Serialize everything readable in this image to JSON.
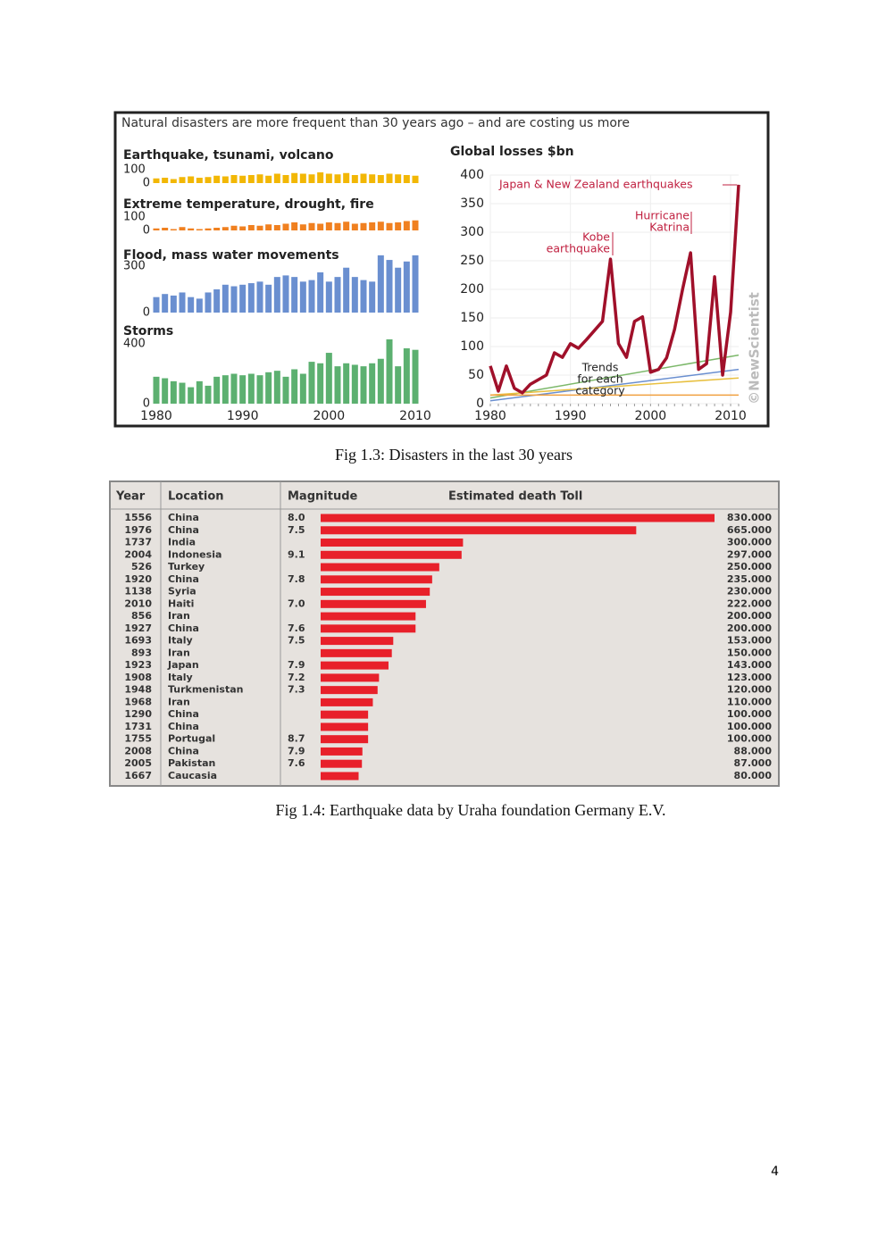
{
  "figures": [
    {
      "header": "Natural disasters are more frequent than 30 years ago – and are costing us more",
      "caption": "Fig 1.3: Disasters in the last 30 years",
      "charts": [
        {
          "type": "bar",
          "title": "Earthquake, tsunami, volcano",
          "color": "#f2b705",
          "xlim": [
            1980,
            2010
          ],
          "ylim": [
            0,
            100
          ],
          "yticks": [
            0,
            100
          ],
          "x": [
            1980,
            1981,
            1982,
            1983,
            1984,
            1985,
            1986,
            1987,
            1988,
            1989,
            1990,
            1991,
            1992,
            1993,
            1994,
            1995,
            1996,
            1997,
            1998,
            1999,
            2000,
            2001,
            2002,
            2003,
            2004,
            2005,
            2006,
            2007,
            2008,
            2009,
            2010
          ],
          "values": [
            35,
            40,
            30,
            45,
            50,
            40,
            45,
            55,
            50,
            60,
            55,
            60,
            65,
            55,
            70,
            60,
            75,
            70,
            65,
            80,
            70,
            65,
            75,
            60,
            70,
            65,
            60,
            70,
            65,
            60,
            55
          ]
        },
        {
          "type": "bar",
          "title": "Extreme temperature, drought, fire",
          "color": "#f08020",
          "xlim": [
            1980,
            2010
          ],
          "ylim": [
            0,
            100
          ],
          "yticks": [
            0,
            100
          ],
          "x": [
            1980,
            1981,
            1982,
            1983,
            1984,
            1985,
            1986,
            1987,
            1988,
            1989,
            1990,
            1991,
            1992,
            1993,
            1994,
            1995,
            1996,
            1997,
            1998,
            1999,
            2000,
            2001,
            2002,
            2003,
            2004,
            2005,
            2006,
            2007,
            2008,
            2009,
            2010
          ],
          "values": [
            15,
            20,
            10,
            25,
            15,
            10,
            15,
            20,
            25,
            35,
            30,
            40,
            35,
            45,
            40,
            50,
            60,
            45,
            55,
            50,
            60,
            55,
            65,
            50,
            55,
            60,
            65,
            55,
            60,
            70,
            75
          ]
        },
        {
          "type": "bar",
          "title": "Flood, mass water movements",
          "color": "#6a8fd0",
          "xlim": [
            1980,
            2010
          ],
          "ylim": [
            0,
            370
          ],
          "yticks": [
            0,
            300
          ],
          "x": [
            1980,
            1981,
            1982,
            1983,
            1984,
            1985,
            1986,
            1987,
            1988,
            1989,
            1990,
            1991,
            1992,
            1993,
            1994,
            1995,
            1996,
            1997,
            1998,
            1999,
            2000,
            2001,
            2002,
            2003,
            2004,
            2005,
            2006,
            2007,
            2008,
            2009,
            2010
          ],
          "values": [
            100,
            120,
            110,
            130,
            100,
            90,
            130,
            150,
            180,
            170,
            180,
            190,
            200,
            180,
            230,
            240,
            230,
            200,
            210,
            260,
            200,
            230,
            290,
            230,
            210,
            200,
            370,
            340,
            290,
            330,
            370
          ]
        },
        {
          "type": "bar",
          "title": "Storms",
          "color": "#5cb070",
          "xlim": [
            1980,
            2010
          ],
          "ylim": [
            0,
            440
          ],
          "yticks": [
            0,
            400
          ],
          "xticks": [
            1980,
            1990,
            2000,
            2010
          ],
          "x": [
            1980,
            1981,
            1982,
            1983,
            1984,
            1985,
            1986,
            1987,
            1988,
            1989,
            1990,
            1991,
            1992,
            1993,
            1994,
            1995,
            1996,
            1997,
            1998,
            1999,
            2000,
            2001,
            2002,
            2003,
            2004,
            2005,
            2006,
            2007,
            2008,
            2009,
            2010
          ],
          "values": [
            180,
            170,
            150,
            140,
            110,
            150,
            120,
            180,
            190,
            200,
            190,
            200,
            190,
            210,
            220,
            180,
            230,
            200,
            280,
            270,
            340,
            250,
            270,
            260,
            250,
            270,
            300,
            430,
            250,
            370,
            360
          ]
        },
        {
          "type": "line",
          "title": "Global losses $bn",
          "color": "#a0102a",
          "xlim": [
            1980,
            2011
          ],
          "ylim": [
            0,
            400
          ],
          "yticks": [
            0,
            50,
            100,
            150,
            200,
            250,
            300,
            350,
            400
          ],
          "xticks": [
            1980,
            1990,
            2000,
            2010
          ],
          "grid": true,
          "x": [
            1980,
            1981,
            1982,
            1983,
            1984,
            1985,
            1986,
            1987,
            1988,
            1989,
            1990,
            1991,
            1992,
            1993,
            1994,
            1995,
            1996,
            1997,
            1998,
            1999,
            2000,
            2001,
            2002,
            2003,
            2004,
            2005,
            2006,
            2007,
            2008,
            2009,
            2010,
            2011
          ],
          "values": [
            66,
            22,
            66,
            27,
            19,
            34,
            42,
            50,
            89,
            81,
            105,
            97,
            112,
            128,
            144,
            253,
            105,
            81,
            144,
            152,
            55,
            60,
            80,
            130,
            200,
            264,
            60,
            70,
            222,
            50,
            160,
            383
          ],
          "trends": [
            {
              "color": "#7cb86a",
              "x": [
                1980,
                2011
              ],
              "values": [
                10,
                85
              ]
            },
            {
              "color": "#6a8fd0",
              "x": [
                1980,
                2011
              ],
              "values": [
                5,
                60
              ]
            },
            {
              "color": "#e8c040",
              "x": [
                1980,
                2011
              ],
              "values": [
                15,
                45
              ]
            },
            {
              "color": "#f0a040",
              "x": [
                1980,
                2011
              ],
              "values": [
                15,
                15
              ]
            }
          ],
          "annotations": [
            [
              "Japan & New Zealand earthquakes"
            ],
            [
              "Hurricane",
              "Katrina"
            ],
            [
              "Kobe",
              "earthquake"
            ],
            [
              "Trends",
              "for each",
              "category"
            ]
          ],
          "credit": "©NewScientist"
        }
      ]
    },
    {
      "caption": "Fig 1.4:  Earthquake data by Uraha foundation Germany E.V.",
      "table": {
        "columns": [
          "Year",
          "Location",
          "Magnitude",
          "Estimated death Toll"
        ],
        "xlim": [
          0,
          830000
        ],
        "rows": [
          [
            1556,
            "China",
            "8.0",
            830000
          ],
          [
            1976,
            "China",
            "7.5",
            665000
          ],
          [
            1737,
            "India",
            null,
            300000
          ],
          [
            2004,
            "Indonesia",
            "9.1",
            297000
          ],
          [
            526,
            "Turkey",
            null,
            250000
          ],
          [
            1920,
            "China",
            "7.8",
            235000
          ],
          [
            1138,
            "Syria",
            null,
            230000
          ],
          [
            2010,
            "Haiti",
            "7.0",
            222000
          ],
          [
            856,
            "Iran",
            null,
            200000
          ],
          [
            1927,
            "China",
            "7.6",
            200000
          ],
          [
            1693,
            "Italy",
            "7.5",
            153000
          ],
          [
            893,
            "Iran",
            null,
            150000
          ],
          [
            1923,
            "Japan",
            "7.9",
            143000
          ],
          [
            1908,
            "Italy",
            "7.2",
            123000
          ],
          [
            1948,
            "Turkmenistan",
            "7.3",
            120000
          ],
          [
            1968,
            "Iran",
            null,
            110000
          ],
          [
            1290,
            "China",
            null,
            100000
          ],
          [
            1731,
            "China",
            null,
            100000
          ],
          [
            1755,
            "Portugal",
            "8.7",
            100000
          ],
          [
            2008,
            "China",
            "7.9",
            88000
          ],
          [
            2005,
            "Pakistan",
            "7.6",
            87000
          ],
          [
            1667,
            "Caucasia",
            null,
            80000
          ]
        ],
        "value_labels": [
          "830.000",
          "665.000",
          "300.000",
          "297.000",
          "250.000",
          "235.000",
          "230.000",
          "222.000",
          "200.000",
          "200.000",
          "153.000",
          "150.000",
          "143.000",
          "123.000",
          "120.000",
          "110.000",
          "100.000",
          "100.000",
          "100.000",
          "88.000",
          "87.000",
          "80.000"
        ]
      }
    }
  ],
  "page_number": "4"
}
